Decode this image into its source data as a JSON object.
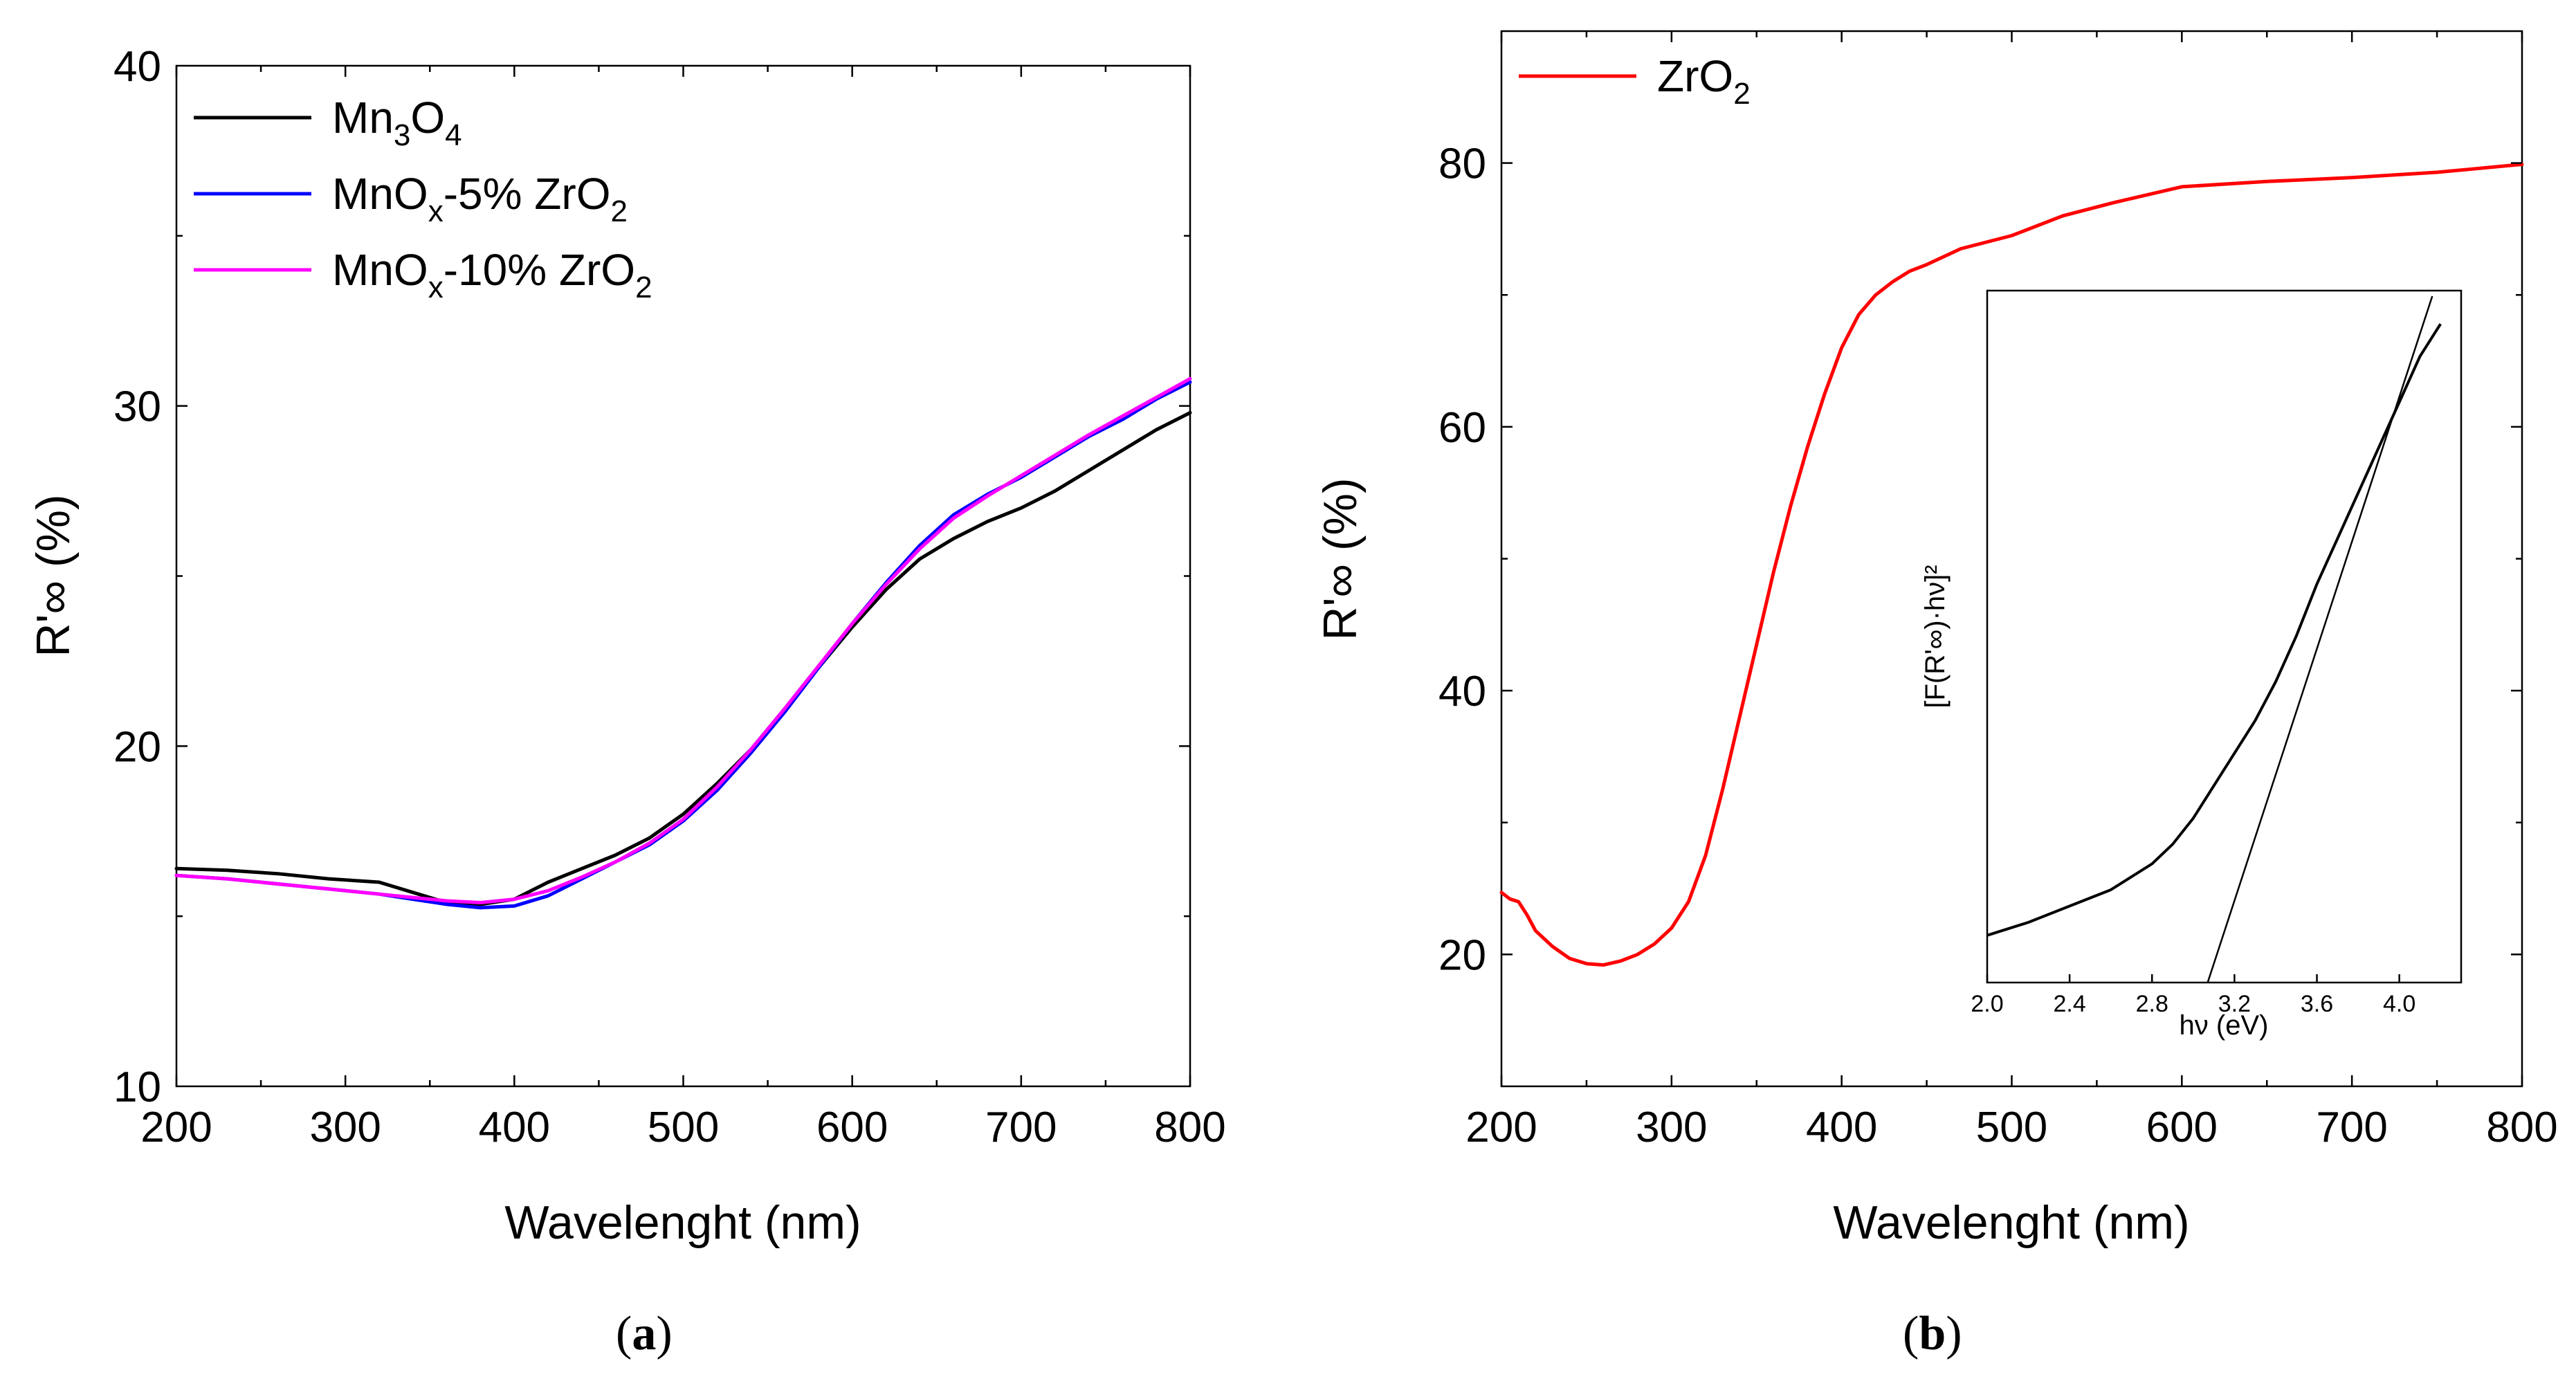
{
  "chart_data": [
    {
      "panel": "(a)",
      "panel_letter": "a",
      "type": "line",
      "xlabel": "Wavelenght (nm)",
      "ylabel": "R'∞ (%)",
      "xlim": [
        200,
        800
      ],
      "ylim": [
        10,
        40
      ],
      "xticks": [
        200,
        300,
        400,
        500,
        600,
        700,
        800
      ],
      "yticks": [
        10,
        20,
        30,
        40
      ],
      "legend_position": "top-left",
      "series": [
        {
          "name": "Mn3O4",
          "legend": {
            "base": "Mn",
            "sub1": "3",
            "mid": "O",
            "sub2": "4",
            "tail": "",
            "sub3": ""
          },
          "color": "#000000",
          "x": [
            200,
            230,
            260,
            290,
            320,
            340,
            360,
            380,
            400,
            420,
            440,
            460,
            480,
            500,
            520,
            540,
            560,
            580,
            600,
            620,
            640,
            660,
            680,
            700,
            720,
            740,
            760,
            780,
            800
          ],
          "y": [
            16.4,
            16.35,
            16.25,
            16.1,
            16.0,
            15.7,
            15.4,
            15.35,
            15.5,
            16.0,
            16.4,
            16.8,
            17.3,
            18.0,
            18.9,
            19.9,
            21.1,
            22.3,
            23.5,
            24.6,
            25.5,
            26.1,
            26.6,
            27.0,
            27.5,
            28.1,
            28.7,
            29.3,
            29.8
          ]
        },
        {
          "name": "MnOx-5% ZrO2",
          "legend": {
            "base": "MnO",
            "sub1": "x",
            "mid": "-5% ZrO",
            "sub2": "2",
            "tail": "",
            "sub3": ""
          },
          "color": "#0000ff",
          "x": [
            200,
            230,
            260,
            290,
            320,
            340,
            360,
            380,
            400,
            420,
            440,
            460,
            480,
            500,
            520,
            540,
            560,
            580,
            600,
            620,
            640,
            660,
            680,
            700,
            720,
            740,
            760,
            780,
            800
          ],
          "y": [
            16.2,
            16.1,
            15.95,
            15.8,
            15.65,
            15.5,
            15.35,
            15.25,
            15.3,
            15.6,
            16.1,
            16.6,
            17.1,
            17.8,
            18.7,
            19.8,
            21.0,
            22.3,
            23.6,
            24.8,
            25.9,
            26.8,
            27.4,
            27.9,
            28.5,
            29.1,
            29.6,
            30.2,
            30.7
          ]
        },
        {
          "name": "MnOx-10% ZrO2",
          "legend": {
            "base": "MnO",
            "sub1": "x",
            "mid": "-10% ZrO",
            "sub2": "2",
            "tail": "",
            "sub3": ""
          },
          "color": "#ff00ff",
          "x": [
            200,
            230,
            260,
            290,
            320,
            340,
            360,
            380,
            400,
            420,
            440,
            460,
            480,
            500,
            520,
            540,
            560,
            580,
            600,
            620,
            640,
            660,
            680,
            700,
            720,
            740,
            760,
            780,
            800
          ],
          "y": [
            16.2,
            16.1,
            15.95,
            15.8,
            15.65,
            15.55,
            15.45,
            15.4,
            15.5,
            15.75,
            16.15,
            16.6,
            17.15,
            17.85,
            18.8,
            19.9,
            21.1,
            22.35,
            23.6,
            24.75,
            25.8,
            26.7,
            27.35,
            27.95,
            28.55,
            29.15,
            29.7,
            30.25,
            30.8
          ]
        }
      ]
    },
    {
      "panel": "(b)",
      "panel_letter": "b",
      "type": "line",
      "xlabel": "Wavelenght (nm)",
      "ylabel": "R'∞ (%)",
      "xlim": [
        200,
        800
      ],
      "ylim": [
        10,
        90
      ],
      "xticks": [
        200,
        300,
        400,
        500,
        600,
        700,
        800
      ],
      "yticks": [
        20,
        40,
        60,
        80
      ],
      "legend_position": "top-left",
      "series": [
        {
          "name": "ZrO2",
          "legend": {
            "base": "ZrO",
            "sub1": "2",
            "mid": "",
            "sub2": "",
            "tail": "",
            "sub3": ""
          },
          "color": "#ff0000",
          "x": [
            200,
            205,
            210,
            215,
            220,
            230,
            240,
            250,
            260,
            270,
            280,
            290,
            300,
            310,
            320,
            330,
            340,
            350,
            360,
            370,
            380,
            390,
            400,
            410,
            420,
            430,
            440,
            450,
            470,
            500,
            530,
            560,
            600,
            650,
            700,
            750,
            800
          ],
          "y": [
            24.7,
            24.2,
            24.0,
            23.0,
            21.8,
            20.6,
            19.7,
            19.3,
            19.2,
            19.5,
            20.0,
            20.8,
            22.0,
            24.0,
            27.5,
            32.5,
            38.0,
            43.5,
            49.0,
            54.0,
            58.5,
            62.5,
            66.0,
            68.5,
            70.0,
            71.0,
            71.8,
            72.3,
            73.5,
            74.5,
            76.0,
            77.0,
            78.2,
            78.6,
            78.9,
            79.3,
            79.9
          ]
        }
      ],
      "inset": {
        "xlabel": "hν (eV)",
        "ylabel": "[F(R'∞)·hν]²",
        "xlim": [
          2.0,
          4.3
        ],
        "ylim": [
          0,
          1
        ],
        "xticks": [
          2.0,
          2.4,
          2.8,
          3.2,
          3.6,
          4.0
        ],
        "xticklabels": [
          "2.0",
          "2.4",
          "2.8",
          "3.2",
          "3.6",
          "4.0"
        ],
        "curve": {
          "x": [
            2.0,
            2.2,
            2.4,
            2.6,
            2.8,
            2.9,
            3.0,
            3.1,
            3.2,
            3.3,
            3.4,
            3.5,
            3.6,
            3.7,
            3.8,
            3.9,
            4.0,
            4.1,
            4.2
          ],
          "y": [
            0.03,
            0.05,
            0.075,
            0.1,
            0.14,
            0.17,
            0.21,
            0.26,
            0.31,
            0.36,
            0.42,
            0.49,
            0.57,
            0.64,
            0.71,
            0.78,
            0.85,
            0.92,
            0.97
          ]
        },
        "tangent": {
          "x": [
            3.07,
            4.16
          ],
          "y": [
            0.0,
            1.0
          ]
        }
      }
    }
  ]
}
